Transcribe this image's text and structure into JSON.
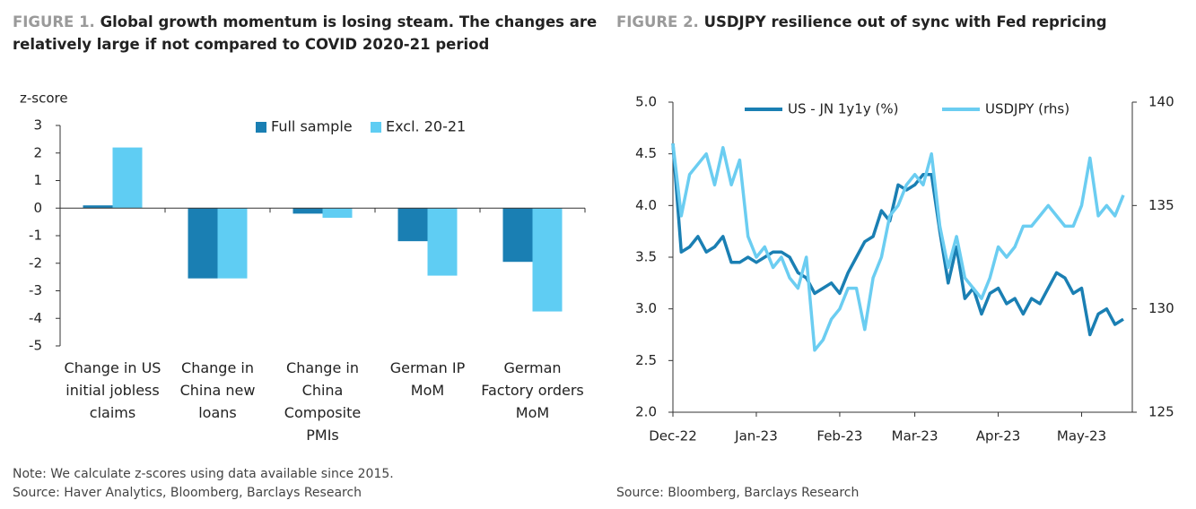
{
  "chart_data": [
    {
      "type": "bar",
      "figure_label": "FIGURE 1.",
      "title": "Global growth momentum is losing steam. The changes are relatively large if not compared to COVID 2020-21 period",
      "ylabel": "z-score",
      "categories": [
        "Change in US initial jobless claims",
        "Change in China new loans",
        "Change in China Composite PMIs",
        "German IP MoM",
        "German Factory orders MoM"
      ],
      "series": [
        {
          "name": "Full sample",
          "color": "#1a7fb3",
          "values": [
            0.1,
            -2.55,
            -0.2,
            -1.2,
            -1.95
          ]
        },
        {
          "name": "Excl. 20-21",
          "color": "#5fcdf3",
          "values": [
            2.2,
            -2.55,
            -0.35,
            -2.45,
            -3.75
          ]
        }
      ],
      "ylim": [
        -5,
        3
      ],
      "yticks": [
        -5,
        -4,
        -3,
        -2,
        -1,
        0,
        1,
        2,
        3
      ],
      "legend": "top-right",
      "note": "Note: We calculate z-scores using data available since 2015.",
      "source": "Source: Haver Analytics, Bloomberg, Barclays Research"
    },
    {
      "type": "line",
      "figure_label": "FIGURE 2.",
      "title": "USDJPY resilience out of sync with Fed repricing",
      "categories": [
        "Dec-22",
        null,
        null,
        null,
        null,
        null,
        null,
        null,
        null,
        null,
        "Jan-23",
        null,
        null,
        null,
        null,
        null,
        null,
        null,
        null,
        null,
        "Feb-23",
        null,
        null,
        null,
        null,
        null,
        null,
        null,
        null,
        "Mar-23",
        null,
        null,
        null,
        null,
        null,
        null,
        null,
        null,
        null,
        "Apr-23",
        null,
        null,
        null,
        null,
        null,
        null,
        null,
        null,
        null,
        "May-23",
        null,
        null,
        null,
        null,
        null
      ],
      "series": [
        {
          "name": "US - JN 1y1y (%)",
          "color": "#1a7fb3",
          "values": [
            4.6,
            3.55,
            3.6,
            3.7,
            3.55,
            3.6,
            3.7,
            3.45,
            3.45,
            3.5,
            3.45,
            3.5,
            3.55,
            3.55,
            3.5,
            3.35,
            3.3,
            3.15,
            3.2,
            3.25,
            3.15,
            3.35,
            3.5,
            3.65,
            3.7,
            3.95,
            3.85,
            4.2,
            4.15,
            4.2,
            4.3,
            4.3,
            3.75,
            3.25,
            3.6,
            3.1,
            3.2,
            2.95,
            3.15,
            3.2,
            3.05,
            3.1,
            2.95,
            3.1,
            3.05,
            3.2,
            3.35,
            3.3,
            3.15,
            3.2,
            2.75,
            2.95,
            3.0,
            2.85,
            2.9
          ]
        },
        {
          "name": "USDJPY (rhs)",
          "color": "#6bcdf1",
          "axis": "y2",
          "values": [
            138,
            134.5,
            136.5,
            137,
            137.5,
            136,
            137.8,
            136,
            137.2,
            133.5,
            132.5,
            133,
            132,
            132.5,
            131.5,
            131,
            132.5,
            128,
            128.5,
            129.5,
            130,
            131,
            131,
            129,
            131.5,
            132.5,
            134.5,
            135,
            136,
            136.5,
            136,
            137.5,
            134,
            132,
            133.5,
            131.5,
            131,
            130.5,
            131.5,
            133,
            132.5,
            133,
            134,
            134,
            134.5,
            135,
            134.5,
            134,
            134,
            135,
            137.3,
            134.5,
            135,
            134.5,
            135.5
          ]
        }
      ],
      "ylim": [
        2,
        5
      ],
      "yticks": [
        {
          "value": 2,
          "label": "2.0"
        },
        {
          "value": 2.5,
          "label": "2.5"
        },
        {
          "value": 3,
          "label": "3.0"
        },
        {
          "value": 3.5,
          "label": "3.5"
        },
        {
          "value": 4,
          "label": "4.0"
        },
        {
          "value": 4.5,
          "label": "4.5"
        },
        {
          "value": 5,
          "label": "5.0"
        }
      ],
      "y2lim": [
        125,
        140
      ],
      "y2ticks": [
        125,
        130,
        135,
        140
      ],
      "legend": "top",
      "source": "Source: Bloomberg, Barclays Research"
    }
  ]
}
